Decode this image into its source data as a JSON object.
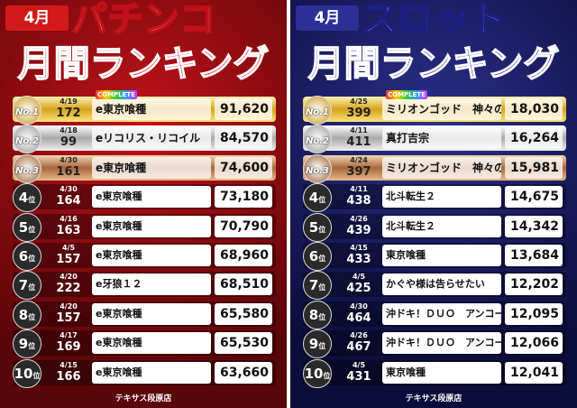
{
  "panels": [
    {
      "month": "4月",
      "title": "パチンコ",
      "subtitle": "月間ランキング",
      "badge": "COMPLETE",
      "footer": "テキサス段原店",
      "rows": [
        {
          "rank": "No.1",
          "date": "4/19",
          "machine": "172",
          "name": "e東京喰種",
          "value": "91,620"
        },
        {
          "rank": "No.2",
          "date": "4/18",
          "machine": "99",
          "name": "eリコリス・リコイル",
          "value": "84,570"
        },
        {
          "rank": "No.3",
          "date": "4/30",
          "machine": "161",
          "name": "e東京喰種",
          "value": "74,600"
        },
        {
          "rank": "4",
          "suffix": "位",
          "date": "4/30",
          "machine": "164",
          "name": "e東京喰種",
          "value": "73,180"
        },
        {
          "rank": "5",
          "suffix": "位",
          "date": "4/16",
          "machine": "163",
          "name": "e東京喰種",
          "value": "70,790"
        },
        {
          "rank": "6",
          "suffix": "位",
          "date": "4/5",
          "machine": "157",
          "name": "e東京喰種",
          "value": "68,960"
        },
        {
          "rank": "7",
          "suffix": "位",
          "date": "4/20",
          "machine": "222",
          "name": "e牙狼１２",
          "value": "68,510"
        },
        {
          "rank": "8",
          "suffix": "位",
          "date": "4/20",
          "machine": "157",
          "name": "e東京喰種",
          "value": "65,580"
        },
        {
          "rank": "9",
          "suffix": "位",
          "date": "4/17",
          "machine": "169",
          "name": "e東京喰種",
          "value": "65,530"
        },
        {
          "rank": "10",
          "suffix": "位",
          "date": "4/15",
          "machine": "166",
          "name": "e東京喰種",
          "value": "63,660"
        }
      ]
    },
    {
      "month": "4月",
      "title": "スロット",
      "subtitle": "月間ランキング",
      "badge": "COMPLETE",
      "footer": "テキサス段原店",
      "rows": [
        {
          "rank": "No.1",
          "date": "4/25",
          "machine": "399",
          "name": "ミリオンゴッド　神々の軌跡",
          "value": "18,030"
        },
        {
          "rank": "No.2",
          "date": "4/11",
          "machine": "411",
          "name": "真打吉宗",
          "value": "16,264"
        },
        {
          "rank": "No.3",
          "date": "4/24",
          "machine": "397",
          "name": "ミリオンゴッド　神々の軌跡",
          "value": "15,981"
        },
        {
          "rank": "4",
          "suffix": "位",
          "date": "4/11",
          "machine": "438",
          "name": "北斗転生２",
          "value": "14,675"
        },
        {
          "rank": "5",
          "suffix": "位",
          "date": "4/26",
          "machine": "439",
          "name": "北斗転生２",
          "value": "14,342"
        },
        {
          "rank": "6",
          "suffix": "位",
          "date": "4/15",
          "machine": "433",
          "name": "東京喰種",
          "value": "13,684"
        },
        {
          "rank": "7",
          "suffix": "位",
          "date": "4/5",
          "machine": "425",
          "name": "かぐや様は告らせたい",
          "value": "12,202"
        },
        {
          "rank": "8",
          "suffix": "位",
          "date": "4/30",
          "machine": "464",
          "name": "沖ドキ！ＤＵＯ　アンコール",
          "value": "12,095"
        },
        {
          "rank": "9",
          "suffix": "位",
          "date": "4/26",
          "machine": "467",
          "name": "沖ドキ！ＤＵＯ　アンコール",
          "value": "12,066"
        },
        {
          "rank": "10",
          "suffix": "位",
          "date": "4/5",
          "machine": "431",
          "name": "東京喰種",
          "value": "12,041"
        }
      ]
    }
  ]
}
